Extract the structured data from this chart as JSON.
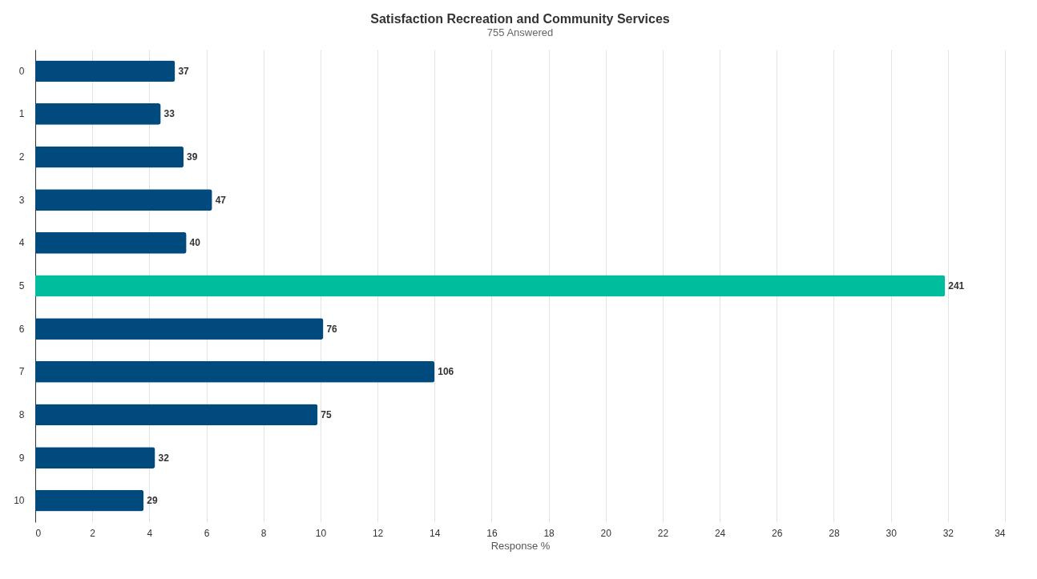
{
  "chart_data": {
    "type": "bar",
    "orientation": "horizontal",
    "title": "Satisfaction Recreation and Community Services",
    "subtitle": "755 Answered",
    "xlabel": "Response %",
    "categories": [
      "0",
      "1",
      "2",
      "3",
      "4",
      "5",
      "6",
      "7",
      "8",
      "9",
      "10"
    ],
    "values": [
      4.9,
      4.4,
      5.2,
      6.2,
      5.3,
      31.9,
      10.1,
      14.0,
      9.9,
      4.2,
      3.8
    ],
    "annotations": [
      {
        "text": "37",
        "x": 4.9,
        "y": "0"
      },
      {
        "text": "33",
        "x": 4.4,
        "y": "1"
      },
      {
        "text": "39",
        "x": 5.2,
        "y": "2"
      },
      {
        "text": "47",
        "x": 6.2,
        "y": "3"
      },
      {
        "text": "40",
        "x": 5.3,
        "y": "4"
      },
      {
        "text": "241",
        "x": 31.9,
        "y": "5"
      },
      {
        "text": "76",
        "x": 10.1,
        "y": "6"
      },
      {
        "text": "106",
        "x": 14.0,
        "y": "7"
      },
      {
        "text": "75",
        "x": 9.9,
        "y": "8"
      },
      {
        "text": "32",
        "x": 4.2,
        "y": "9"
      },
      {
        "text": "29",
        "x": 3.8,
        "y": "10"
      }
    ],
    "colors": [
      "#014a7d",
      "#014a7d",
      "#014a7d",
      "#014a7d",
      "#014a7d",
      "#00bd9d",
      "#014a7d",
      "#014a7d",
      "#014a7d",
      "#014a7d",
      "#014a7d"
    ],
    "xlim": [
      0,
      34
    ],
    "xticks": [
      0,
      2,
      4,
      6,
      8,
      10,
      12,
      14,
      16,
      18,
      20,
      22,
      24,
      26,
      28,
      30,
      32,
      34
    ],
    "grid": "x"
  }
}
